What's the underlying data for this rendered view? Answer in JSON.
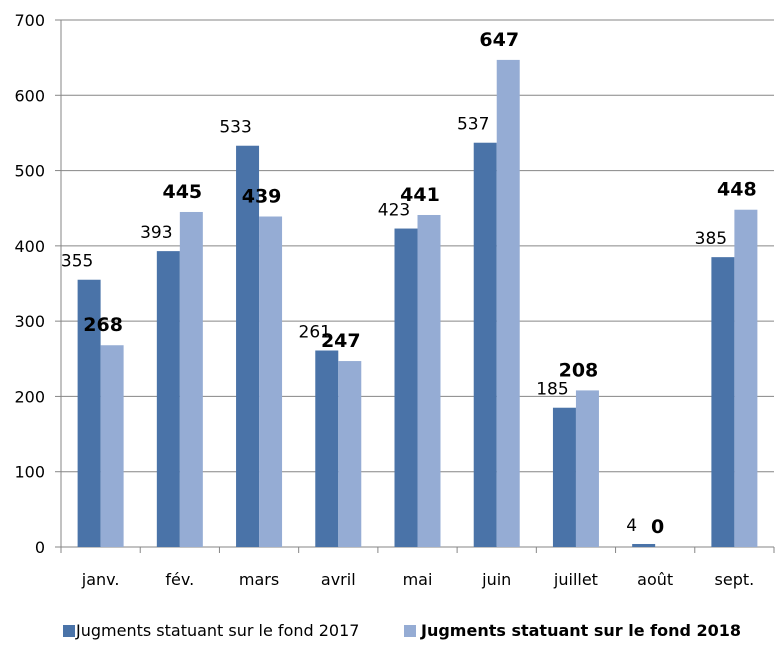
{
  "chart_data": {
    "type": "bar",
    "categories": [
      "janv.",
      "fév.",
      "mars",
      "avril",
      "mai",
      "juin",
      "juillet",
      "août",
      "sept."
    ],
    "series": [
      {
        "name": "Jugments statuant sur le fond 2017",
        "color": "#4a73a8",
        "values": [
          355,
          393,
          533,
          261,
          423,
          537,
          185,
          4,
          385
        ]
      },
      {
        "name": "Jugments statuant sur le fond 2018",
        "color": "#95acd4",
        "values": [
          268,
          445,
          439,
          247,
          441,
          647,
          208,
          0,
          448
        ]
      }
    ],
    "ylim": [
      0,
      700
    ],
    "yticks": [
      0,
      100,
      200,
      300,
      400,
      500,
      600,
      700
    ],
    "grid": true,
    "legend": "bottom"
  }
}
